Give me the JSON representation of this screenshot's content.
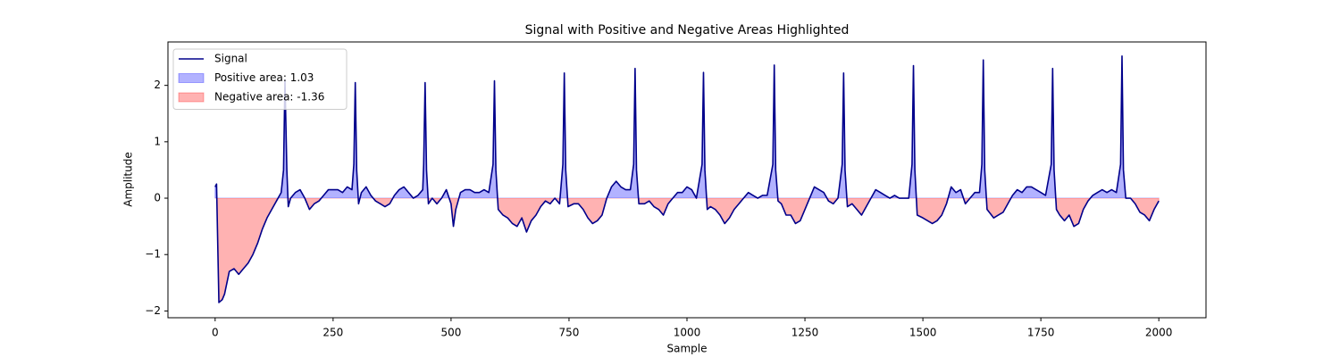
{
  "chart_data": {
    "type": "line",
    "title": "Signal with Positive and Negative Areas Highlighted",
    "x_label": "Sample",
    "y_label": "Amplitude",
    "xlim": [
      -100,
      2100
    ],
    "ylim": [
      -2.12,
      2.77
    ],
    "xticks": [
      0,
      250,
      500,
      750,
      1000,
      1250,
      1500,
      1750,
      2000
    ],
    "yticks": [
      {
        "value": -2,
        "label": "−2"
      },
      {
        "value": -1,
        "label": "−1"
      },
      0,
      1,
      2
    ],
    "legend": "upper left",
    "x": [
      0,
      3,
      8,
      15,
      20,
      30,
      40,
      50,
      60,
      70,
      80,
      90,
      100,
      110,
      120,
      130,
      140,
      145,
      148,
      152,
      155,
      160,
      170,
      180,
      190,
      200,
      210,
      220,
      230,
      240,
      250,
      260,
      270,
      280,
      290,
      294,
      297,
      300,
      304,
      310,
      320,
      330,
      340,
      350,
      360,
      370,
      380,
      390,
      400,
      410,
      420,
      430,
      440,
      442,
      445,
      448,
      452,
      460,
      470,
      480,
      490,
      500,
      505,
      510,
      520,
      530,
      540,
      550,
      560,
      570,
      580,
      589,
      592,
      595,
      600,
      610,
      620,
      630,
      640,
      650,
      660,
      670,
      680,
      690,
      700,
      710,
      720,
      730,
      737,
      740,
      743,
      748,
      760,
      770,
      780,
      790,
      800,
      810,
      820,
      830,
      840,
      850,
      860,
      870,
      880,
      887,
      890,
      893,
      898,
      910,
      920,
      930,
      940,
      950,
      960,
      970,
      980,
      990,
      1000,
      1010,
      1020,
      1032,
      1035,
      1038,
      1043,
      1050,
      1060,
      1070,
      1080,
      1090,
      1100,
      1110,
      1120,
      1130,
      1140,
      1150,
      1160,
      1170,
      1182,
      1185,
      1188,
      1193,
      1200,
      1210,
      1220,
      1230,
      1240,
      1250,
      1260,
      1270,
      1280,
      1290,
      1300,
      1310,
      1320,
      1329,
      1332,
      1335,
      1340,
      1350,
      1360,
      1370,
      1380,
      1390,
      1400,
      1410,
      1420,
      1430,
      1440,
      1450,
      1460,
      1470,
      1477,
      1480,
      1483,
      1488,
      1500,
      1510,
      1520,
      1530,
      1540,
      1550,
      1560,
      1570,
      1580,
      1590,
      1600,
      1610,
      1620,
      1625,
      1628,
      1631,
      1636,
      1650,
      1660,
      1670,
      1680,
      1690,
      1700,
      1710,
      1720,
      1730,
      1740,
      1750,
      1760,
      1772,
      1775,
      1778,
      1783,
      1790,
      1800,
      1810,
      1820,
      1830,
      1840,
      1850,
      1860,
      1870,
      1880,
      1890,
      1900,
      1910,
      1919,
      1922,
      1925,
      1930,
      1940,
      1950,
      1960,
      1970,
      1980,
      1990,
      2000
    ],
    "series": [
      {
        "name": "Signal",
        "color": "#00008b",
        "values": [
          0.2,
          0.25,
          -1.85,
          -1.8,
          -1.7,
          -1.3,
          -1.25,
          -1.35,
          -1.25,
          -1.15,
          -1.0,
          -0.8,
          -0.55,
          -0.35,
          -0.2,
          -0.05,
          0.1,
          0.5,
          2.1,
          0.5,
          -0.15,
          0.0,
          0.1,
          0.15,
          0.0,
          -0.2,
          -0.1,
          -0.05,
          0.05,
          0.15,
          0.15,
          0.15,
          0.1,
          0.2,
          0.15,
          0.6,
          2.05,
          0.5,
          -0.1,
          0.1,
          0.2,
          0.05,
          -0.05,
          -0.1,
          -0.15,
          -0.1,
          0.05,
          0.15,
          0.2,
          0.1,
          0.0,
          0.05,
          0.15,
          0.6,
          2.05,
          0.5,
          -0.1,
          0.0,
          -0.1,
          0.0,
          0.15,
          -0.1,
          -0.5,
          -0.2,
          0.1,
          0.15,
          0.15,
          0.1,
          0.1,
          0.15,
          0.1,
          0.6,
          2.08,
          0.5,
          -0.2,
          -0.3,
          -0.35,
          -0.45,
          -0.5,
          -0.35,
          -0.6,
          -0.4,
          -0.3,
          -0.15,
          -0.05,
          -0.1,
          0.0,
          -0.1,
          0.6,
          2.22,
          0.5,
          -0.15,
          -0.1,
          -0.1,
          -0.2,
          -0.35,
          -0.45,
          -0.4,
          -0.3,
          0.0,
          0.2,
          0.3,
          0.2,
          0.15,
          0.15,
          0.6,
          2.3,
          0.5,
          -0.1,
          -0.1,
          -0.05,
          -0.15,
          -0.2,
          -0.3,
          -0.1,
          0.0,
          0.1,
          0.1,
          0.2,
          0.15,
          0.0,
          0.6,
          2.23,
          0.5,
          -0.2,
          -0.15,
          -0.2,
          -0.3,
          -0.45,
          -0.35,
          -0.2,
          -0.1,
          0.0,
          0.1,
          0.05,
          0.0,
          0.05,
          0.05,
          0.6,
          2.36,
          0.5,
          -0.05,
          -0.1,
          -0.3,
          -0.3,
          -0.45,
          -0.4,
          -0.2,
          0.0,
          0.2,
          0.15,
          0.1,
          -0.05,
          -0.1,
          0.0,
          0.6,
          2.22,
          0.5,
          -0.15,
          -0.1,
          -0.2,
          -0.3,
          -0.15,
          0.0,
          0.15,
          0.1,
          0.05,
          0.0,
          0.05,
          0.0,
          0.0,
          0.0,
          0.6,
          2.35,
          0.5,
          -0.3,
          -0.35,
          -0.4,
          -0.45,
          -0.4,
          -0.3,
          -0.1,
          0.2,
          0.1,
          0.15,
          -0.1,
          0.0,
          0.1,
          0.1,
          0.6,
          2.45,
          0.5,
          -0.2,
          -0.35,
          -0.3,
          -0.25,
          -0.1,
          0.05,
          0.15,
          0.1,
          0.2,
          0.2,
          0.15,
          0.1,
          0.05,
          0.6,
          2.3,
          0.5,
          -0.2,
          -0.3,
          -0.4,
          -0.3,
          -0.5,
          -0.45,
          -0.2,
          -0.05,
          0.05,
          0.1,
          0.15,
          0.1,
          0.15,
          0.1,
          0.6,
          2.52,
          0.5,
          0.0,
          0.0,
          -0.1,
          -0.25,
          -0.3,
          -0.4,
          -0.2,
          -0.05
        ]
      }
    ],
    "areas": [
      {
        "name": "Positive area: 1.03",
        "color": "#0000ff"
      },
      {
        "name": "Negative area: -1.36",
        "color": "#ff0000"
      }
    ]
  }
}
